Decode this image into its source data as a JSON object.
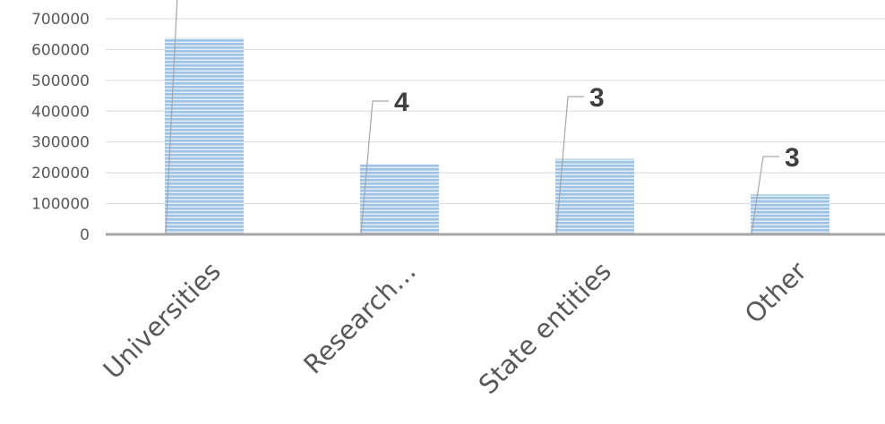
{
  "chart_data": {
    "type": "bar",
    "categories": [
      "Universities",
      "Research…",
      "State entities",
      "Other"
    ],
    "values": [
      638000,
      228000,
      245000,
      130000
    ],
    "data_labels": [
      "",
      "4",
      "3",
      "3"
    ],
    "ylim": [
      0,
      700000
    ],
    "yticks": [
      0,
      100000,
      200000,
      300000,
      400000,
      500000,
      600000,
      700000
    ],
    "ytick_labels": [
      "0",
      "100000",
      "200000",
      "300000",
      "400000",
      "500000",
      "600000",
      "700000"
    ],
    "grid": true,
    "legend": "none",
    "bar_color": "#9dc3e6",
    "bar_stripe_color": "#ffffff"
  }
}
